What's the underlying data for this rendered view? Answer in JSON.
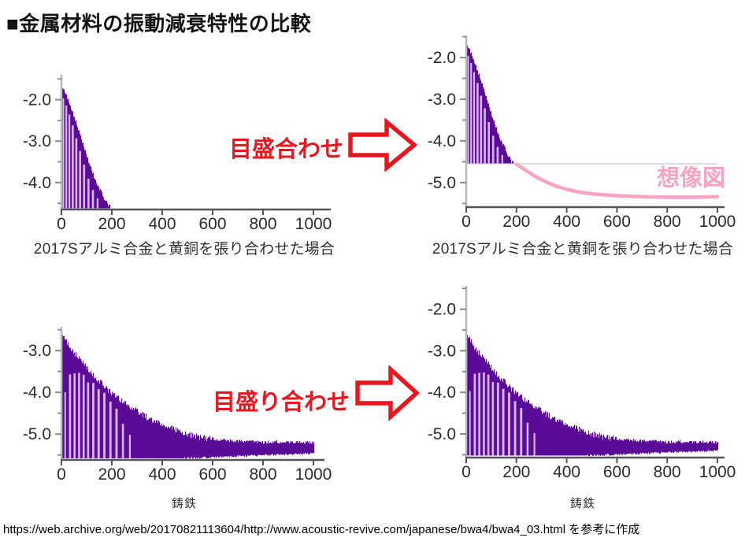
{
  "title": "■金属材料の振動減衰特性の比較",
  "footer": "https://web.archive.org/web/20170821113604/http://www.acoustic-revive.com/japanese/bwa4/bwa4_03.html を参考に作成",
  "annotations": {
    "top_label": "目盛合わせ",
    "bottom_label": "目盛り合わせ",
    "imagined_label": "想像図"
  },
  "colors": {
    "red": "#e8171f",
    "pink": "#f6a3c4",
    "purple": "#5a0c99",
    "purple_light": "#d8b6ee",
    "axis_y": "#bdb7c4",
    "axis_x": "#55525a",
    "tick_label": "#2b2b2b"
  },
  "chart_data": [
    {
      "type": "area",
      "subtype": "damped-oscillation-envelope",
      "caption": "2017Sアルミ合金と黄銅を張り合わせた場合",
      "xlabel": "2017Sアルミ合金と黄銅を張り合わせた場合",
      "ylabel": "",
      "xlim": [
        0,
        1000
      ],
      "ylim": [
        -1.4,
        -4.63
      ],
      "xticks": [
        0,
        200,
        400,
        600,
        800,
        1000
      ],
      "yticks": [
        -2.0,
        -3.0,
        -4.0
      ],
      "yticks_minor": [
        -1.5,
        -2.5,
        -3.5,
        -4.5
      ],
      "grid": false,
      "signal": {
        "color": "#5a0c99",
        "light_color": "#d8b6ee",
        "baseline": -4.62,
        "end_x": 193,
        "jitter": 0.1,
        "envelope": [
          [
            0,
            -1.7
          ],
          [
            10,
            -1.78
          ],
          [
            20,
            -1.92
          ],
          [
            30,
            -2.08
          ],
          [
            40,
            -2.25
          ],
          [
            50,
            -2.42
          ],
          [
            60,
            -2.6
          ],
          [
            70,
            -2.8
          ],
          [
            80,
            -3.0
          ],
          [
            90,
            -3.2
          ],
          [
            100,
            -3.38
          ],
          [
            110,
            -3.55
          ],
          [
            120,
            -3.72
          ],
          [
            130,
            -3.88
          ],
          [
            140,
            -4.02
          ],
          [
            150,
            -4.15
          ],
          [
            160,
            -4.28
          ],
          [
            170,
            -4.4
          ],
          [
            180,
            -4.5
          ],
          [
            193,
            -4.6
          ]
        ],
        "gaps": [
          [
            5,
            6,
            0.92
          ],
          [
            16,
            7,
            0.9
          ],
          [
            28,
            7,
            0.88
          ],
          [
            41,
            8,
            0.85
          ],
          [
            55,
            8,
            0.8
          ],
          [
            70,
            8,
            0.76
          ],
          [
            86,
            8,
            0.7
          ],
          [
            103,
            8,
            0.6
          ],
          [
            121,
            8,
            0.5
          ],
          [
            140,
            7,
            0.4
          ]
        ]
      }
    },
    {
      "type": "area",
      "subtype": "damped-oscillation-envelope",
      "caption": "2017Sアルミ合金と黄銅を張り合わせた場合",
      "xlabel": "2017Sアルミ合金と黄銅を張り合わせた場合",
      "ylabel": "",
      "xlim": [
        0,
        1000
      ],
      "ylim": [
        -1.47,
        -5.57
      ],
      "xticks": [
        0,
        200,
        400,
        600,
        800,
        1000
      ],
      "yticks": [
        -2.0,
        -3.0,
        -4.0,
        -5.0
      ],
      "yticks_minor": [
        -1.5,
        -2.5,
        -3.5,
        -4.5,
        -5.5
      ],
      "grid": false,
      "signal": {
        "color": "#5a0c99",
        "light_color": "#d8b6ee",
        "baseline": -4.55,
        "end_x": 200,
        "jitter": 0.1,
        "envelope": [
          [
            0,
            -1.7
          ],
          [
            10,
            -1.78
          ],
          [
            20,
            -1.92
          ],
          [
            30,
            -2.08
          ],
          [
            40,
            -2.25
          ],
          [
            50,
            -2.42
          ],
          [
            60,
            -2.6
          ],
          [
            70,
            -2.8
          ],
          [
            80,
            -3.0
          ],
          [
            90,
            -3.2
          ],
          [
            100,
            -3.38
          ],
          [
            110,
            -3.55
          ],
          [
            120,
            -3.72
          ],
          [
            130,
            -3.88
          ],
          [
            140,
            -4.02
          ],
          [
            150,
            -4.15
          ],
          [
            160,
            -4.28
          ],
          [
            170,
            -4.4
          ],
          [
            180,
            -4.5
          ],
          [
            193,
            -4.58
          ],
          [
            200,
            -4.55
          ]
        ],
        "gaps": [
          [
            5,
            6,
            0.92
          ],
          [
            16,
            7,
            0.9
          ],
          [
            28,
            7,
            0.88
          ],
          [
            41,
            8,
            0.85
          ],
          [
            55,
            8,
            0.8
          ],
          [
            70,
            8,
            0.76
          ],
          [
            86,
            8,
            0.7
          ],
          [
            103,
            8,
            0.6
          ],
          [
            121,
            8,
            0.5
          ],
          [
            140,
            7,
            0.4
          ]
        ]
      },
      "extra": {
        "cut_line": {
          "y": -4.55,
          "color": "#c9c9c9"
        },
        "pink_curve": {
          "color": "#f6a3c4",
          "points": [
            [
              200,
              -4.56
            ],
            [
              240,
              -4.72
            ],
            [
              280,
              -4.87
            ],
            [
              320,
              -4.99
            ],
            [
              360,
              -5.09
            ],
            [
              400,
              -5.16
            ],
            [
              450,
              -5.23
            ],
            [
              500,
              -5.27
            ],
            [
              560,
              -5.3
            ],
            [
              620,
              -5.32
            ],
            [
              700,
              -5.34
            ],
            [
              800,
              -5.35
            ],
            [
              900,
              -5.35
            ],
            [
              1000,
              -5.34
            ]
          ]
        },
        "pink_label": {
          "text": "想像図",
          "y": -5.07,
          "color": "#f6a3c4"
        }
      }
    },
    {
      "type": "area",
      "subtype": "damped-oscillation-envelope",
      "caption": "鋳鉄",
      "xlabel": "鋳鉄",
      "ylabel": "",
      "xlim": [
        0,
        1000
      ],
      "ylim": [
        -2.43,
        -5.6
      ],
      "xticks": [
        0,
        200,
        400,
        600,
        800,
        1000
      ],
      "yticks": [
        -3.0,
        -4.0,
        -5.0
      ],
      "yticks_minor": [
        -2.5,
        -3.5,
        -4.5,
        -5.5
      ],
      "grid": false,
      "signal": {
        "color": "#5a0c99",
        "light_color": "#d8b6ee",
        "baseline": -5.58,
        "end_x": 1000,
        "jitter": 0.15,
        "band_lift": {
          "start": 480,
          "amount": 0.12
        },
        "envelope": [
          [
            0,
            -2.62
          ],
          [
            15,
            -2.72
          ],
          [
            30,
            -2.9
          ],
          [
            50,
            -3.05
          ],
          [
            70,
            -3.2
          ],
          [
            90,
            -3.35
          ],
          [
            110,
            -3.5
          ],
          [
            130,
            -3.62
          ],
          [
            160,
            -3.8
          ],
          [
            190,
            -3.98
          ],
          [
            220,
            -4.12
          ],
          [
            250,
            -4.25
          ],
          [
            280,
            -4.38
          ],
          [
            310,
            -4.5
          ],
          [
            340,
            -4.6
          ],
          [
            370,
            -4.7
          ],
          [
            400,
            -4.78
          ],
          [
            430,
            -4.85
          ],
          [
            460,
            -4.92
          ],
          [
            500,
            -5.0
          ],
          [
            540,
            -5.06
          ],
          [
            580,
            -5.1
          ],
          [
            620,
            -5.13
          ],
          [
            660,
            -5.15
          ],
          [
            700,
            -5.17
          ],
          [
            750,
            -5.18
          ],
          [
            800,
            -5.2
          ],
          [
            850,
            -5.18
          ],
          [
            900,
            -5.2
          ],
          [
            950,
            -5.19
          ],
          [
            1000,
            -5.2
          ]
        ],
        "gaps": [
          [
            12,
            6,
            0.55
          ],
          [
            30,
            8,
            0.75
          ],
          [
            48,
            8,
            0.8
          ],
          [
            66,
            8,
            0.85
          ],
          [
            84,
            8,
            0.88
          ],
          [
            102,
            8,
            0.85
          ],
          [
            122,
            9,
            0.9
          ],
          [
            143,
            9,
            0.88
          ],
          [
            166,
            9,
            0.9
          ],
          [
            190,
            9,
            0.85
          ],
          [
            214,
            9,
            0.8
          ],
          [
            240,
            8,
            0.6
          ],
          [
            268,
            7,
            0.45
          ]
        ]
      }
    },
    {
      "type": "area",
      "subtype": "damped-oscillation-envelope",
      "caption": "鋳鉄",
      "xlabel": "鋳鉄",
      "ylabel": "",
      "xlim": [
        0,
        1000
      ],
      "ylim": [
        -1.44,
        -5.55
      ],
      "xticks": [
        0,
        200,
        400,
        600,
        800,
        1000
      ],
      "yticks": [
        -2.0,
        -3.0,
        -4.0,
        -5.0
      ],
      "yticks_minor": [
        -1.5,
        -2.5,
        -3.5,
        -4.5,
        -5.5
      ],
      "grid": false,
      "signal": {
        "color": "#5a0c99",
        "light_color": "#d8b6ee",
        "baseline": -5.52,
        "end_x": 1000,
        "jitter": 0.15,
        "band_lift": {
          "start": 480,
          "amount": 0.12
        },
        "envelope": [
          [
            0,
            -2.62
          ],
          [
            15,
            -2.72
          ],
          [
            30,
            -2.9
          ],
          [
            50,
            -3.05
          ],
          [
            70,
            -3.2
          ],
          [
            90,
            -3.35
          ],
          [
            110,
            -3.5
          ],
          [
            130,
            -3.62
          ],
          [
            160,
            -3.8
          ],
          [
            190,
            -3.98
          ],
          [
            220,
            -4.12
          ],
          [
            250,
            -4.25
          ],
          [
            280,
            -4.38
          ],
          [
            310,
            -4.5
          ],
          [
            340,
            -4.6
          ],
          [
            370,
            -4.7
          ],
          [
            400,
            -4.78
          ],
          [
            430,
            -4.85
          ],
          [
            460,
            -4.92
          ],
          [
            500,
            -5.0
          ],
          [
            540,
            -5.06
          ],
          [
            580,
            -5.1
          ],
          [
            620,
            -5.13
          ],
          [
            660,
            -5.15
          ],
          [
            700,
            -5.17
          ],
          [
            750,
            -5.18
          ],
          [
            800,
            -5.2
          ],
          [
            850,
            -5.18
          ],
          [
            900,
            -5.2
          ],
          [
            950,
            -5.19
          ],
          [
            1000,
            -5.2
          ]
        ],
        "gaps": [
          [
            12,
            6,
            0.55
          ],
          [
            30,
            8,
            0.75
          ],
          [
            48,
            8,
            0.8
          ],
          [
            66,
            8,
            0.85
          ],
          [
            84,
            8,
            0.88
          ],
          [
            102,
            8,
            0.85
          ],
          [
            122,
            9,
            0.9
          ],
          [
            143,
            9,
            0.88
          ],
          [
            166,
            9,
            0.9
          ],
          [
            190,
            9,
            0.85
          ],
          [
            214,
            9,
            0.8
          ],
          [
            240,
            8,
            0.6
          ],
          [
            268,
            7,
            0.45
          ]
        ]
      }
    }
  ]
}
